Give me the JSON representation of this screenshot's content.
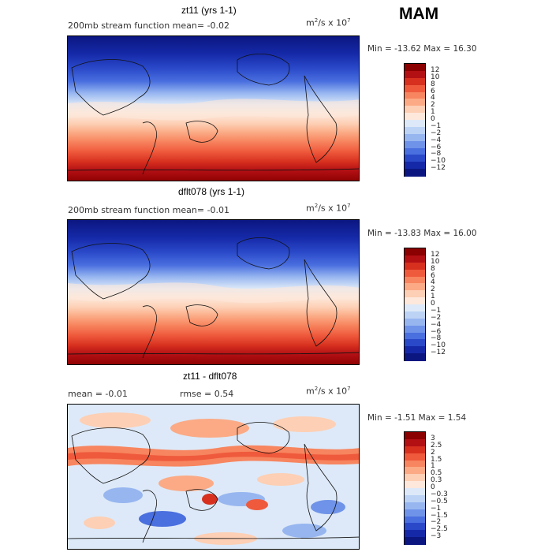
{
  "season": "MAM",
  "unit_base": "m",
  "unit_exp1": "2",
  "unit_mid": "/s x 10",
  "unit_exp2": "7",
  "panels": [
    {
      "title": "zt11 (yrs 1-1)",
      "subtitle": "200mb stream function   mean=  -0.02",
      "minmax": "Min = -13.62 Max =  16.30",
      "colorbar": {
        "labels": [
          "12",
          "10",
          "8",
          "6",
          "4",
          "2",
          "1",
          "0",
          "−1",
          "−2",
          "−4",
          "−6",
          "−8",
          "−10",
          "−12"
        ],
        "colors": [
          "#8b0000",
          "#b31014",
          "#d7301f",
          "#ef5a3c",
          "#f7855f",
          "#fbaa85",
          "#fdcfb4",
          "#fde8db",
          "#dde9f8",
          "#bcd3f5",
          "#97b6f0",
          "#6f93e8",
          "#4a6fdf",
          "#2a49c9",
          "#1529a8",
          "#0b1680"
        ]
      }
    },
    {
      "title": "dflt078 (yrs 1-1)",
      "subtitle": "200mb stream function   mean=  -0.01",
      "minmax": "Min = -13.83 Max =  16.00",
      "colorbar": {
        "labels": [
          "12",
          "10",
          "8",
          "6",
          "4",
          "2",
          "1",
          "0",
          "−1",
          "−2",
          "−4",
          "−6",
          "−8",
          "−10",
          "−12"
        ],
        "colors": [
          "#8b0000",
          "#b31014",
          "#d7301f",
          "#ef5a3c",
          "#f7855f",
          "#fbaa85",
          "#fdcfb4",
          "#fde8db",
          "#dde9f8",
          "#bcd3f5",
          "#97b6f0",
          "#6f93e8",
          "#4a6fdf",
          "#2a49c9",
          "#1529a8",
          "#0b1680"
        ]
      }
    },
    {
      "title": "zt11 - dflt078",
      "mean_text": "mean =   -0.01",
      "rmse_text": "rmse =    0.54",
      "minmax": "Min = -1.51 Max =  1.54",
      "colorbar": {
        "labels": [
          "3",
          "2.5",
          "2",
          "1.5",
          "1",
          "0.5",
          "0.3",
          "0",
          "−0.3",
          "−0.5",
          "−1",
          "−1.5",
          "−2",
          "−2.5",
          "−3"
        ],
        "colors": [
          "#8b0000",
          "#b31014",
          "#d7301f",
          "#ef5a3c",
          "#f7855f",
          "#fbaa85",
          "#fdcfb4",
          "#fde8db",
          "#dde9f8",
          "#bcd3f5",
          "#97b6f0",
          "#6f93e8",
          "#4a6fdf",
          "#2a49c9",
          "#1529a8",
          "#0b1680"
        ]
      }
    }
  ]
}
